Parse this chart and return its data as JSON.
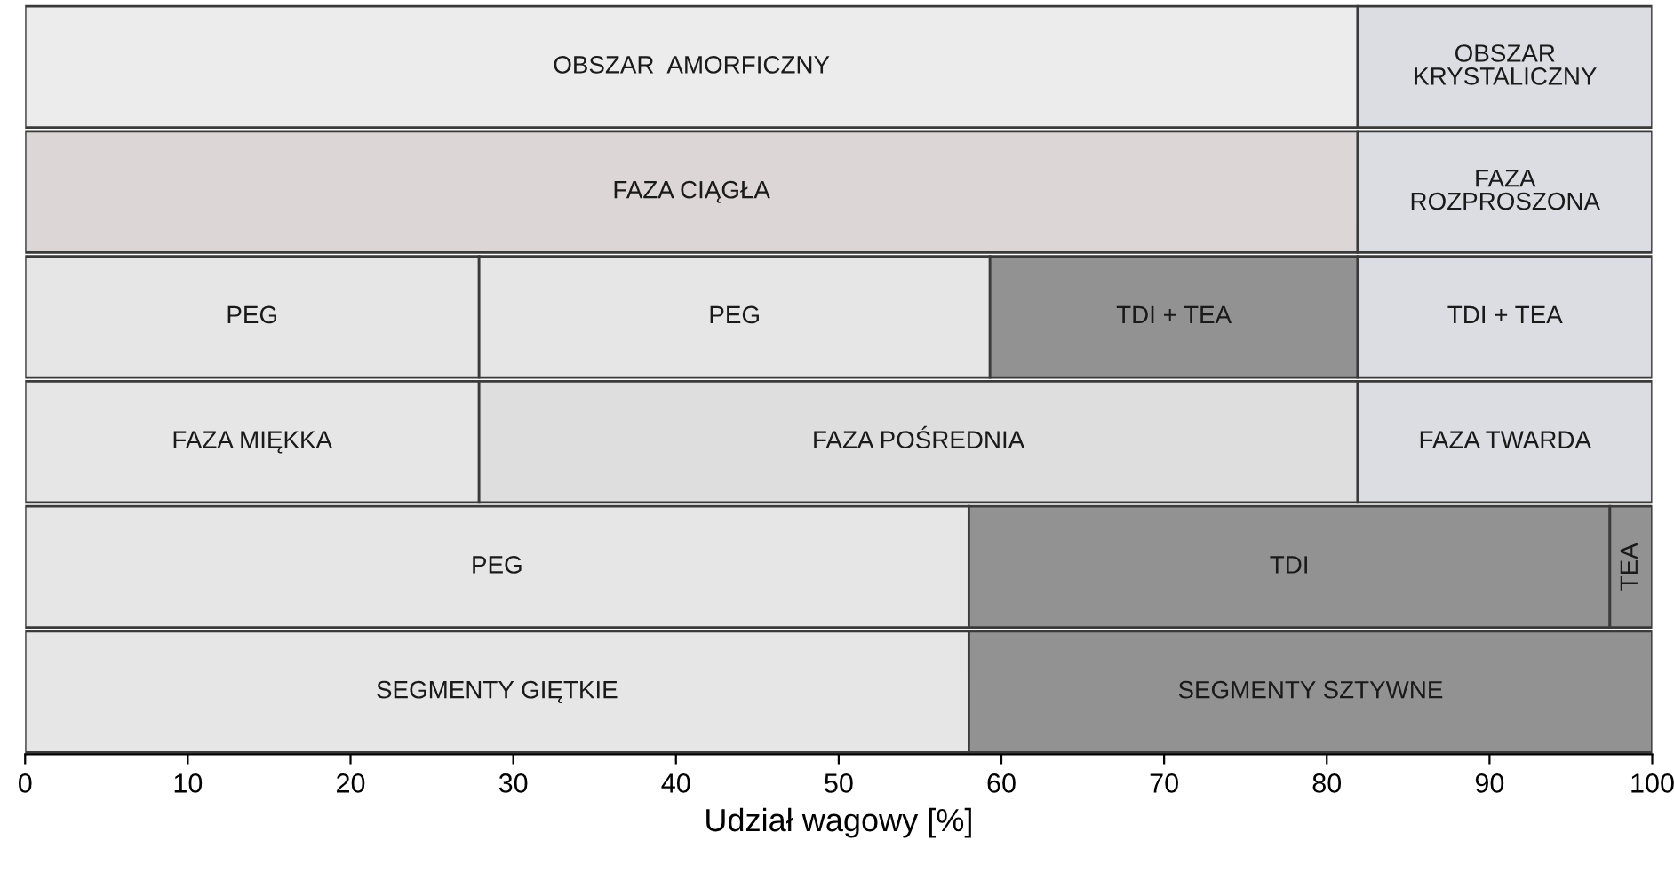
{
  "chart_data": {
    "type": "bar",
    "orientation": "horizontal",
    "stacked": true,
    "xlabel": "Udział wagowy [%]",
    "categories": [
      null,
      null,
      null,
      null,
      null,
      null
    ],
    "series": [
      {
        "values": [
          81.9,
          81.9,
          27.9,
          27.9,
          58.0,
          58.0
        ],
        "colors": [
          "#ececec",
          "#ddd6d6",
          "#e6e6e6",
          "#e6e6e6",
          "#e6e6e6",
          "#e6e6e6"
        ],
        "value_labels": [
          "OBSZAR  AMORFICZNY",
          "FAZA CIĄGŁA",
          "PEG",
          "FAZA MIĘKKA",
          "PEG",
          "SEGMENTY GIĘTKIE"
        ]
      },
      {
        "values": [
          18.1,
          18.1,
          31.4,
          54.0,
          39.4,
          42.0
        ],
        "colors": [
          "#dcdde2",
          "#dcdde2",
          "#e6e6e6",
          "#dedede",
          "#919291",
          "#919291"
        ],
        "value_labels": [
          "OBSZAR\nKRYSTALICZNY",
          "FAZA\nROZPROSZONA",
          "PEG",
          "FAZA POŚREDNIA",
          "TDI",
          "SEGMENTY SZTYWNE"
        ]
      },
      {
        "values": [
          null,
          null,
          22.6,
          18.1,
          2.6,
          null
        ],
        "colors": [
          null,
          null,
          "#919291",
          "#dcdde2",
          "#919291",
          null
        ],
        "value_labels": [
          null,
          null,
          "TDI + TEA",
          "FAZA TWARDA",
          "TEA",
          null
        ]
      },
      {
        "values": [
          null,
          null,
          18.1,
          null,
          null,
          null
        ],
        "colors": [
          null,
          null,
          "#dcdde2",
          null,
          null,
          null
        ],
        "value_labels": [
          null,
          null,
          "TDI + TEA",
          null,
          null,
          null
        ]
      }
    ],
    "xlim": [
      0,
      100
    ],
    "xticks": [
      0,
      10,
      20,
      30,
      40,
      50,
      60,
      70,
      80,
      90,
      100
    ],
    "tick_labels": "x",
    "grid": false,
    "legend": false
  }
}
